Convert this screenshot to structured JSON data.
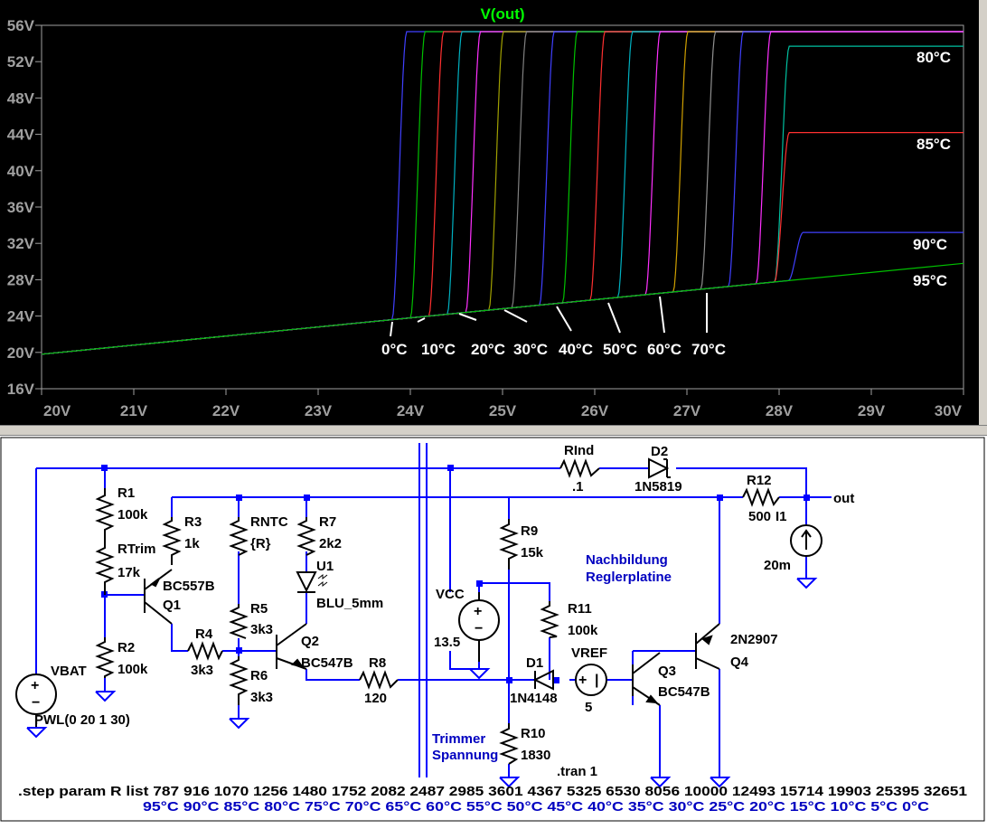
{
  "plot": {
    "title": "V(out)",
    "title_color": "#00ff00",
    "y_ticks": [
      "56V",
      "52V",
      "48V",
      "44V",
      "40V",
      "36V",
      "32V",
      "28V",
      "24V",
      "20V",
      "16V"
    ],
    "x_ticks": [
      "20V",
      "21V",
      "22V",
      "23V",
      "24V",
      "25V",
      "26V",
      "27V",
      "28V",
      "29V",
      "30V"
    ],
    "temp_labels_bottom": [
      "0°C",
      "10°C",
      "20°C",
      "30°C",
      "40°C",
      "50°C",
      "60°C",
      "70°C"
    ],
    "temp_labels_right": [
      "80°C",
      "85°C",
      "90°C",
      "95°C"
    ]
  },
  "chart_data": {
    "type": "line",
    "title": "V(out)",
    "xlabel": "",
    "ylabel": "",
    "xlim": [
      20,
      30
    ],
    "ylim": [
      16,
      56
    ],
    "grid": false,
    "base_line": {
      "x": [
        20,
        30
      ],
      "y": [
        19.8,
        29.8
      ]
    },
    "series": [
      {
        "name": "0°C",
        "rise_x": 23.8,
        "plateau_y": 55.3,
        "color": "#4040ff"
      },
      {
        "name": "",
        "rise_x": 24.0,
        "plateau_y": 55.3,
        "color": "#00c000"
      },
      {
        "name": "10°C",
        "rise_x": 24.2,
        "plateau_y": 55.3,
        "color": "#ff3030"
      },
      {
        "name": "",
        "rise_x": 24.4,
        "plateau_y": 55.3,
        "color": "#00b0c0"
      },
      {
        "name": "20°C",
        "rise_x": 24.6,
        "plateau_y": 55.3,
        "color": "#ff30ff"
      },
      {
        "name": "",
        "rise_x": 24.85,
        "plateau_y": 55.3,
        "color": "#a0a000"
      },
      {
        "name": "30°C",
        "rise_x": 25.1,
        "plateau_y": 55.3,
        "color": "#808080"
      },
      {
        "name": "",
        "rise_x": 25.4,
        "plateau_y": 55.3,
        "color": "#4040ff"
      },
      {
        "name": "40°C",
        "rise_x": 25.65,
        "plateau_y": 55.3,
        "color": "#00c000"
      },
      {
        "name": "",
        "rise_x": 25.95,
        "plateau_y": 55.3,
        "color": "#ff3030"
      },
      {
        "name": "50°C",
        "rise_x": 26.25,
        "plateau_y": 55.3,
        "color": "#00b0c0"
      },
      {
        "name": "",
        "rise_x": 26.55,
        "plateau_y": 55.3,
        "color": "#ff30ff"
      },
      {
        "name": "60°C",
        "rise_x": 26.85,
        "plateau_y": 55.3,
        "color": "#d0a000"
      },
      {
        "name": "",
        "rise_x": 27.15,
        "plateau_y": 55.3,
        "color": "#909090"
      },
      {
        "name": "70°C",
        "rise_x": 27.45,
        "plateau_y": 55.3,
        "color": "#4040ff"
      },
      {
        "name": "",
        "rise_x": 27.75,
        "plateau_y": 55.3,
        "color": "#ff30ff"
      },
      {
        "name": "80°C",
        "rise_x": 27.95,
        "plateau_y": 53.7,
        "color": "#00c0a0"
      },
      {
        "name": "85°C",
        "rise_x": 27.95,
        "plateau_y": 44.2,
        "color": "#ff3030"
      },
      {
        "name": "90°C",
        "rise_x": 28.1,
        "plateau_y": 33.2,
        "color": "#4040ff"
      },
      {
        "name": "95°C",
        "rise_x": null,
        "plateau_y": null,
        "color": "#00c000"
      }
    ]
  },
  "schematic": {
    "wire_color": "#0000ff",
    "text_color": "#000000",
    "comment_color": "#0000c0",
    "labels": {
      "r1": "R1",
      "r1_val": "100k",
      "rtrim": "RTrim",
      "rtrim_val": "17k",
      "r2": "R2",
      "r2_val": "100k",
      "r3": "R3",
      "r3_val": "1k",
      "q1_type": "BC557B",
      "q1": "Q1",
      "r4": "R4",
      "r4_val": "3k3",
      "rntc": "RNTC",
      "rntc_val": "{R}",
      "r5": "R5",
      "r5_val": "3k3",
      "r6": "R6",
      "r6_val": "3k3",
      "r7": "R7",
      "r7_val": "2k2",
      "u1": "U1",
      "u1_val": "BLU_5mm",
      "q2": "Q2",
      "q2_type": "BC547B",
      "r8": "R8",
      "r8_val": "120",
      "vbat": "VBAT",
      "vbat_val": "PWL(0 20 1 30)",
      "rind": "RInd",
      "rind_val": ".1",
      "d2": "D2",
      "d2_val": "1N5819",
      "r12": "R12",
      "r12_val": "500",
      "out": "out",
      "i1": "I1",
      "i1_val": "20m",
      "r9": "R9",
      "r9_val": "15k",
      "vcc": "VCC",
      "vcc_val": "13.5",
      "r11": "R11",
      "r11_val": "100k",
      "d1": "D1",
      "d1_val": "1N4148",
      "vref": "VREF",
      "vref_val": "5",
      "q3": "Q3",
      "q3_type": "BC547B",
      "q4_type": "2N2907",
      "q4": "Q4",
      "r10": "R10",
      "r10_val": "1830",
      "tran": ".tran 1"
    },
    "comments": {
      "nachbildung": "Nachbildung",
      "reglerplatine": "Reglerplatine",
      "trimmer": "Trimmer",
      "spannung": "Spannung"
    },
    "step_line": ".step param R list 787 916 1070 1256 1480 1752 2082 2487 2985 3601 4367 5325 6530 8056 10000 12493 15714 19903 25395 32651",
    "temps_line": "95°C 90°C 85°C 80°C 75°C 70°C 65°C 60°C 55°C 50°C 45°C 40°C 35°C 30°C 25°C 20°C 15°C 10°C 5°C 0°C"
  }
}
